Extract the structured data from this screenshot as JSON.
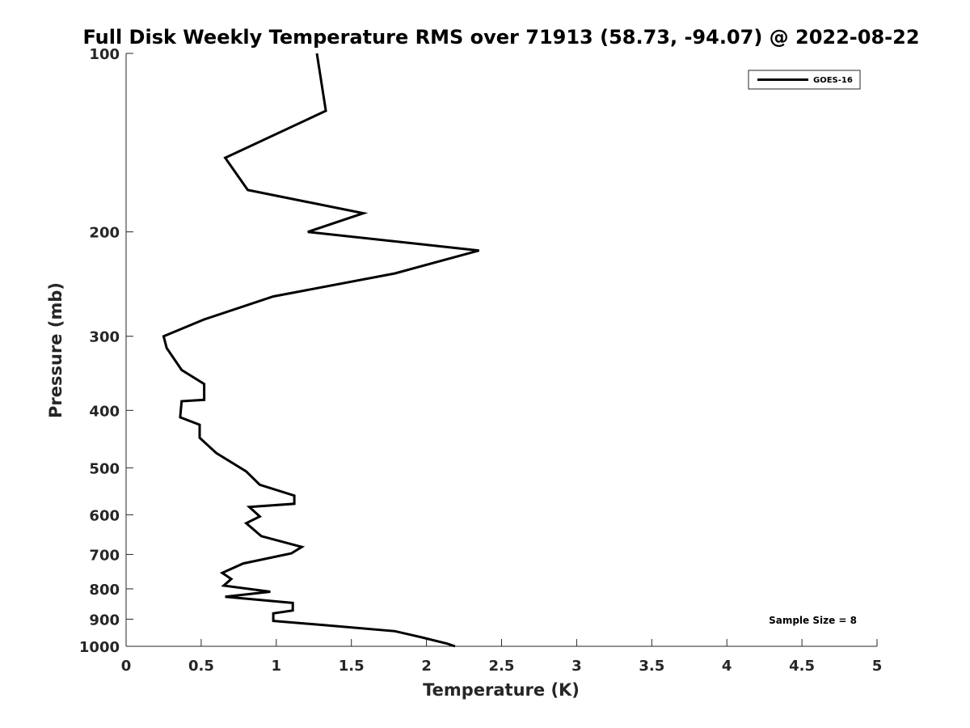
{
  "chart_data": {
    "type": "line",
    "title": "Full Disk Weekly Temperature RMS over 71913 (58.73, -94.07) @ 2022-08-22",
    "xlabel": "Temperature (K)",
    "ylabel": "Pressure (mb)",
    "xlim": [
      0,
      5
    ],
    "ylim": [
      100,
      1000
    ],
    "y_scale": "log",
    "y_reversed": true,
    "xticks": [
      0,
      0.5,
      1,
      1.5,
      2,
      2.5,
      3,
      3.5,
      4,
      4.5,
      5
    ],
    "xtick_labels": [
      "0",
      "0.5",
      "1",
      "1.5",
      "2",
      "2.5",
      "3",
      "3.5",
      "4",
      "4.5",
      "5"
    ],
    "yticks": [
      100,
      200,
      300,
      400,
      500,
      600,
      700,
      800,
      900,
      1000
    ],
    "ytick_labels": [
      "100",
      "200",
      "300",
      "400",
      "500",
      "600",
      "700",
      "800",
      "900",
      "1000"
    ],
    "grid": false,
    "legend_position": "top-right",
    "annotation": "Sample Size = 8",
    "series": [
      {
        "name": "GOES-16",
        "color": "#000000",
        "x": [
          1.27,
          1.33,
          0.66,
          0.81,
          1.58,
          1.21,
          2.35,
          1.79,
          0.98,
          0.52,
          0.25,
          0.27,
          0.37,
          0.52,
          0.52,
          0.37,
          0.36,
          0.49,
          0.49,
          0.6,
          0.8,
          0.89,
          1.12,
          1.12,
          0.82,
          0.89,
          0.8,
          0.9,
          1.17,
          1.1,
          0.78,
          0.64,
          0.7,
          0.65,
          0.96,
          0.66,
          1.11,
          1.11,
          0.98,
          0.98,
          1.34,
          1.79,
          1.97,
          2.14,
          2.19
        ],
        "y": [
          100,
          125,
          150,
          170,
          186,
          200,
          215,
          235,
          257,
          281,
          300,
          314,
          342,
          361,
          384,
          386,
          411,
          423,
          445,
          472,
          507,
          534,
          557,
          575,
          582,
          604,
          620,
          652,
          680,
          697,
          725,
          752,
          770,
          790,
          809,
          825,
          845,
          870,
          880,
          906,
          922,
          943,
          966,
          990,
          1000
        ]
      }
    ]
  }
}
